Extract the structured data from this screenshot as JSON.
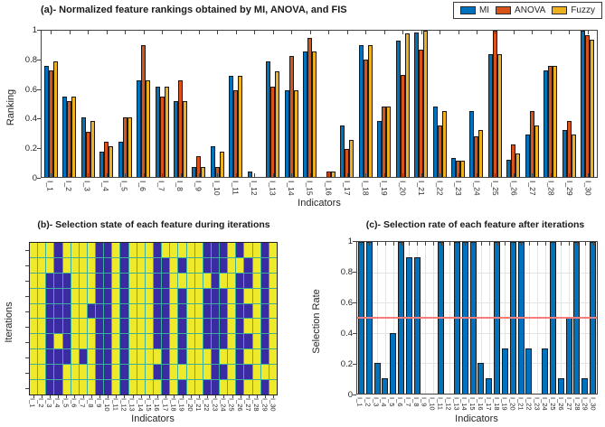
{
  "figure": {
    "background": "#ffffff",
    "indicators_axis_label": "Indicators"
  },
  "chart_data": [
    {
      "panel": "a",
      "type": "bar",
      "title": "(a)- Normalized feature rankings obtained by MI, ANOVA, and FIS",
      "xlabel": "Indicators",
      "ylabel": "Ranking",
      "ylim": [
        0,
        1
      ],
      "yticks": [
        "0",
        "0.2",
        "0.4",
        "0.6",
        "0.8",
        "1"
      ],
      "grid": false,
      "legend_position": "top-right-outside",
      "bar_edge_color": "#1a1a1a",
      "categories": [
        "I_1",
        "I_2",
        "I_3",
        "I_4",
        "I_5",
        "I_6",
        "I_7",
        "I_8",
        "I_9",
        "I_10",
        "I_11",
        "I_12",
        "I_13",
        "I_14",
        "I_15",
        "I_16",
        "I_17",
        "I_18",
        "I_19",
        "I_20",
        "I_21",
        "I_22",
        "I_23",
        "I_24",
        "I_25",
        "I_26",
        "I_27",
        "I_28",
        "I_29",
        "I_30"
      ],
      "series": [
        {
          "name": "MI",
          "color": "#0072BD",
          "values": [
            0.76,
            0.55,
            0.41,
            0.17,
            0.24,
            0.66,
            0.62,
            0.52,
            0.07,
            0.21,
            0.69,
            0.04,
            0.79,
            0.59,
            0.86,
            0.0,
            0.35,
            0.9,
            0.38,
            0.93,
            0.99,
            0.48,
            0.13,
            0.45,
            0.84,
            0.12,
            0.29,
            0.73,
            0.32,
            1.0
          ]
        },
        {
          "name": "ANOVA",
          "color": "#D95319",
          "values": [
            0.73,
            0.52,
            0.31,
            0.24,
            0.41,
            0.9,
            0.55,
            0.66,
            0.14,
            0.07,
            0.59,
            0.0,
            0.62,
            0.83,
            0.95,
            0.04,
            0.19,
            0.8,
            0.48,
            0.7,
            0.87,
            0.35,
            0.11,
            0.28,
            1.0,
            0.22,
            0.45,
            0.76,
            0.38,
            0.97
          ]
        },
        {
          "name": "Fuzzy",
          "color": "#EDB120",
          "values": [
            0.79,
            0.55,
            0.38,
            0.21,
            0.41,
            0.66,
            0.62,
            0.52,
            0.07,
            0.17,
            0.69,
            0.0,
            0.72,
            0.59,
            0.86,
            0.04,
            0.25,
            0.9,
            0.48,
            0.98,
            1.0,
            0.45,
            0.11,
            0.32,
            0.84,
            0.16,
            0.35,
            0.76,
            0.29,
            0.94
          ]
        }
      ]
    },
    {
      "panel": "b",
      "type": "heatmap",
      "title": "(b)- Selection state of each feature during iterations",
      "xlabel": "Indicators",
      "ylabel": "Iterations",
      "iterations": 10,
      "categories": [
        "I_1",
        "I_2",
        "I_3",
        "I_4",
        "I_5",
        "I_6",
        "I_7",
        "I_8",
        "I_9",
        "I_10",
        "I_11",
        "I_12",
        "I_13",
        "I_14",
        "I_15",
        "I_16",
        "I_17",
        "I_18",
        "I_19",
        "I_20",
        "I_21",
        "I_22",
        "I_23",
        "I_24",
        "I_25",
        "I_26",
        "I_27",
        "I_28",
        "I_29",
        "I_30"
      ],
      "colors": {
        "selected": "#EFE92C",
        "unselected": "#3A2BA3",
        "gridline": "#3CAF9C"
      },
      "matrix": [
        [
          1,
          1,
          1,
          0,
          1,
          1,
          1,
          1,
          0,
          0,
          1,
          0,
          1,
          1,
          1,
          0,
          1,
          1,
          1,
          1,
          1,
          0,
          0,
          0,
          1,
          0,
          1,
          1,
          0,
          1
        ],
        [
          1,
          1,
          1,
          0,
          1,
          1,
          1,
          1,
          0,
          0,
          1,
          0,
          1,
          1,
          1,
          0,
          0,
          1,
          0,
          1,
          1,
          0,
          0,
          0,
          1,
          1,
          0,
          1,
          0,
          1
        ],
        [
          1,
          1,
          0,
          0,
          0,
          1,
          1,
          1,
          0,
          0,
          1,
          0,
          1,
          1,
          1,
          0,
          0,
          1,
          1,
          1,
          1,
          1,
          0,
          1,
          1,
          0,
          0,
          1,
          0,
          1
        ],
        [
          1,
          1,
          0,
          0,
          0,
          1,
          1,
          1,
          0,
          0,
          1,
          0,
          1,
          1,
          1,
          0,
          0,
          1,
          0,
          1,
          1,
          0,
          0,
          0,
          1,
          0,
          1,
          1,
          0,
          1
        ],
        [
          1,
          1,
          0,
          0,
          0,
          1,
          1,
          0,
          0,
          0,
          1,
          0,
          1,
          1,
          1,
          0,
          0,
          1,
          0,
          1,
          1,
          0,
          0,
          0,
          1,
          0,
          0,
          1,
          0,
          1
        ],
        [
          1,
          1,
          0,
          0,
          0,
          1,
          1,
          1,
          0,
          0,
          1,
          0,
          1,
          1,
          1,
          0,
          0,
          1,
          0,
          1,
          1,
          0,
          0,
          0,
          1,
          0,
          1,
          1,
          0,
          1
        ],
        [
          1,
          1,
          0,
          1,
          0,
          1,
          1,
          1,
          0,
          0,
          1,
          0,
          1,
          1,
          1,
          0,
          0,
          1,
          0,
          1,
          1,
          0,
          0,
          0,
          1,
          0,
          0,
          1,
          0,
          1
        ],
        [
          1,
          1,
          0,
          0,
          0,
          1,
          0,
          1,
          0,
          0,
          1,
          0,
          1,
          1,
          1,
          1,
          0,
          1,
          0,
          1,
          1,
          1,
          0,
          1,
          1,
          0,
          1,
          1,
          0,
          1
        ],
        [
          1,
          1,
          0,
          0,
          1,
          1,
          1,
          1,
          0,
          0,
          1,
          0,
          1,
          1,
          1,
          0,
          0,
          1,
          1,
          1,
          1,
          1,
          0,
          0,
          1,
          0,
          0,
          1,
          1,
          1
        ],
        [
          1,
          1,
          0,
          0,
          1,
          1,
          1,
          1,
          0,
          0,
          1,
          0,
          1,
          1,
          1,
          1,
          0,
          1,
          0,
          1,
          1,
          0,
          0,
          1,
          1,
          0,
          1,
          1,
          0,
          1
        ]
      ]
    },
    {
      "panel": "c",
      "type": "bar",
      "title": "(c)- Selection rate of each feature after iterations",
      "xlabel": "Indicators",
      "ylabel": "Selection Rate",
      "ylim": [
        0,
        1
      ],
      "yticks": [
        "0",
        "0.2",
        "0.4",
        "0.6",
        "0.8",
        "1"
      ],
      "grid": true,
      "bar_color": "#0072BD",
      "bar_edge_color": "#1a1a1a",
      "threshold_line": {
        "value": 0.5,
        "color": "#F47C7C"
      },
      "categories": [
        "I_1",
        "I_2",
        "I_3",
        "I_4",
        "I_5",
        "I_6",
        "I_7",
        "I_8",
        "I_9",
        "I_10",
        "I_11",
        "I_12",
        "I_13",
        "I_14",
        "I_15",
        "I_16",
        "I_17",
        "I_18",
        "I_19",
        "I_20",
        "I_21",
        "I_22",
        "I_23",
        "I_24",
        "I_25",
        "I_26",
        "I_27",
        "I_28",
        "I_29",
        "I_30"
      ],
      "values": [
        1,
        1,
        0.2,
        0.1,
        0.4,
        1,
        0.9,
        0.9,
        0,
        0,
        1,
        0,
        1,
        1,
        1,
        0.2,
        0.1,
        1,
        0.3,
        1,
        1,
        0.3,
        0,
        0.3,
        1,
        0.1,
        0.5,
        1,
        0.1,
        1
      ]
    }
  ]
}
